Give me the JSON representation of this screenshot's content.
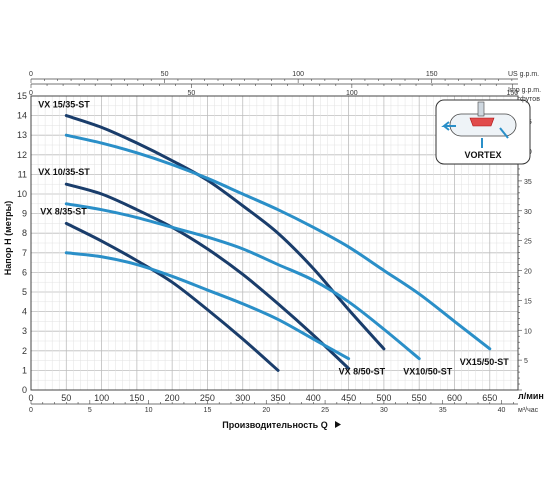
{
  "chart_data": {
    "type": "line",
    "xlabel": "Производительность Q",
    "xunit": "л/мин",
    "x2unit": "м³/час",
    "ylabel": "Напор H (метры)",
    "y2unit": "футов",
    "top_axis_1_unit": "US g.p.m.",
    "top_axis_2_unit": "Imp g.p.m.",
    "xlim": [
      0,
      690
    ],
    "ylim": [
      0,
      15
    ],
    "grid": true,
    "x_ticks": [
      0,
      50,
      100,
      150,
      200,
      250,
      300,
      350,
      400,
      450,
      500,
      550,
      600,
      650
    ],
    "y_ticks": [
      0,
      1,
      2,
      3,
      4,
      5,
      6,
      7,
      8,
      9,
      10,
      11,
      12,
      13,
      14,
      15
    ],
    "x2_ticks": [
      0,
      5,
      10,
      15,
      20,
      25,
      30,
      35,
      40
    ],
    "y2_ticks": [
      5,
      10,
      15,
      20,
      25,
      30,
      35,
      40,
      45
    ],
    "us_gpm_ticks": [
      0,
      50,
      100,
      150
    ],
    "imp_gpm_ticks": [
      0,
      50,
      100,
      150
    ],
    "series": [
      {
        "name": "VX 15/35-ST",
        "color": "#1a3d6b",
        "x": [
          50,
          100,
          150,
          200,
          250,
          300,
          350,
          400,
          450,
          500
        ],
        "y": [
          14,
          13.4,
          12.6,
          11.7,
          10.7,
          9.4,
          8,
          6.2,
          4.1,
          2.1
        ]
      },
      {
        "name": "VX 10/35-ST",
        "color": "#1a3d6b",
        "x": [
          50,
          100,
          150,
          200,
          250,
          300,
          350,
          400,
          450
        ],
        "y": [
          10.5,
          10,
          9.2,
          8.3,
          7.2,
          5.9,
          4.4,
          2.8,
          1.1
        ]
      },
      {
        "name": "VX 8/35-ST",
        "color": "#1a3d6b",
        "x": [
          50,
          100,
          150,
          200,
          250,
          300,
          350
        ],
        "y": [
          8.5,
          7.6,
          6.6,
          5.5,
          4.1,
          2.6,
          1
        ]
      },
      {
        "name": "VX 8/50-ST",
        "color": "#2a8fc8",
        "x": [
          50,
          100,
          150,
          200,
          250,
          300,
          350,
          400,
          450
        ],
        "y": [
          7,
          6.8,
          6.4,
          5.8,
          5.1,
          4.4,
          3.6,
          2.6,
          1.6
        ]
      },
      {
        "name": "VX10/50-ST",
        "color": "#2a8fc8",
        "x": [
          50,
          100,
          150,
          200,
          250,
          300,
          350,
          400,
          450,
          500,
          550
        ],
        "y": [
          9.5,
          9.2,
          8.8,
          8.3,
          7.8,
          7.2,
          6.4,
          5.6,
          4.5,
          3.1,
          1.6
        ]
      },
      {
        "name": "VX15/50-ST",
        "color": "#2a8fc8",
        "x": [
          50,
          100,
          150,
          200,
          250,
          300,
          350,
          400,
          450,
          500,
          550,
          600,
          650
        ],
        "y": [
          13,
          12.6,
          12.1,
          11.5,
          10.8,
          10,
          9.2,
          8.3,
          7.3,
          6.1,
          4.9,
          3.5,
          2.1
        ]
      }
    ],
    "inset_label": "VORTEX"
  }
}
